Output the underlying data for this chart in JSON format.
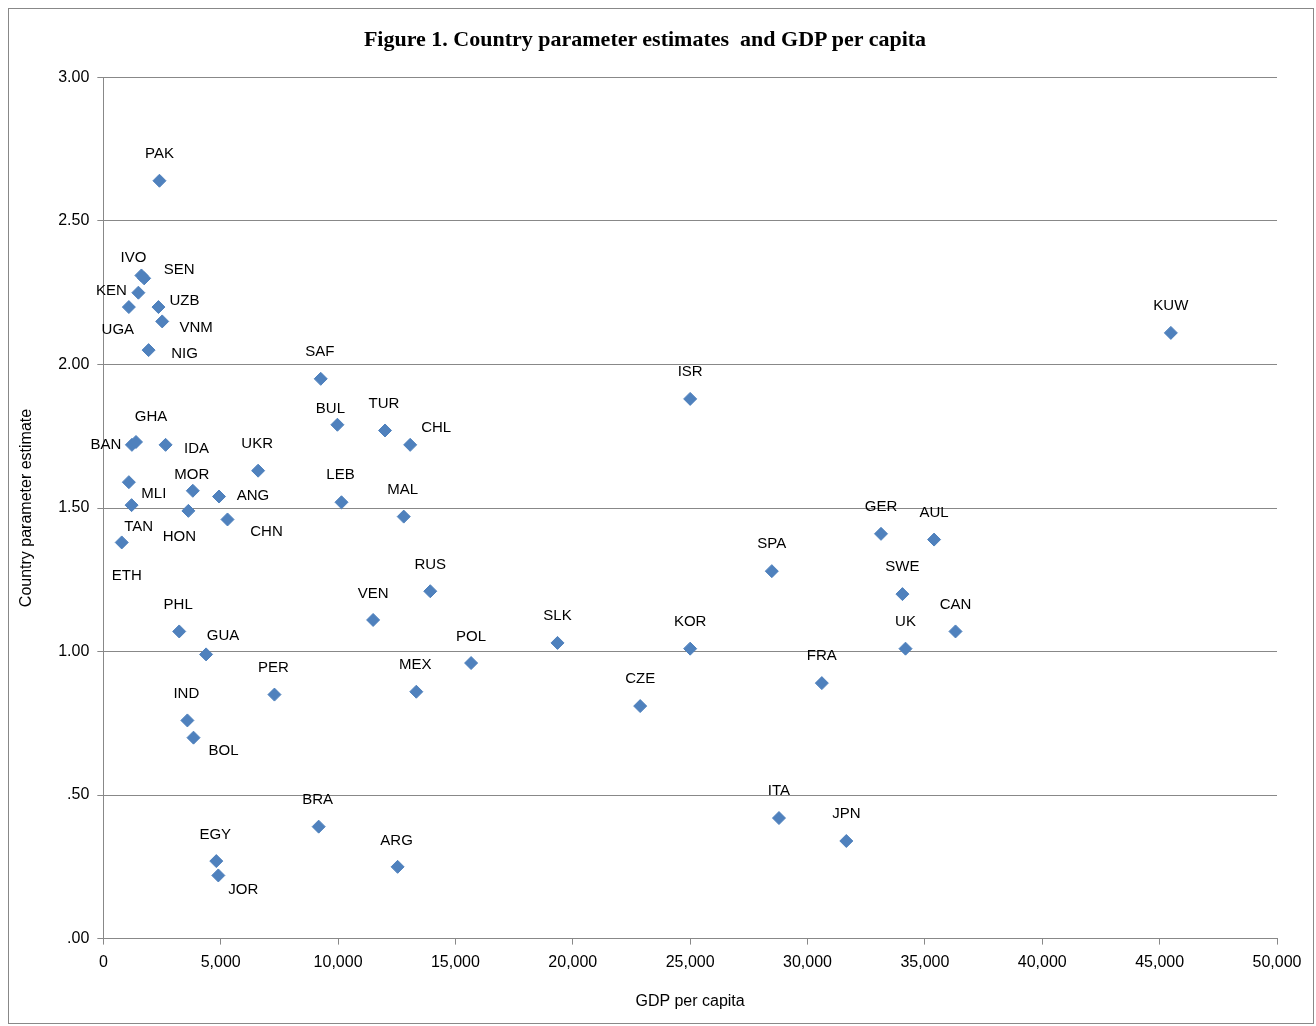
{
  "chart_data": {
    "type": "scatter",
    "title": "Figure 1. Country parameter estimates  and GDP per capita",
    "xlabel": "GDP per capita",
    "ylabel": "Country parameter estimate",
    "x": [
      2391,
      1622,
      1739,
      1493,
      1087,
      2348,
      2507,
      1928,
      9261,
      9971,
      1217,
      1391,
      2652,
      6594,
      1087,
      1203,
      783,
      3812,
      4928,
      3623,
      5290,
      10145,
      3232,
      4377,
      7290,
      3580,
      3841,
      11493,
      4812,
      4899,
      9174,
      12536,
      12000,
      13072,
      12797,
      13928,
      13333,
      15667,
      19348,
      22870,
      25000,
      25000,
      28478,
      30609,
      28783,
      31652,
      33130,
      35391,
      34043,
      34174,
      36304,
      45478
    ],
    "values": [
      2.64,
      2.31,
      2.3,
      2.25,
      2.2,
      2.2,
      2.15,
      2.05,
      1.95,
      1.79,
      1.72,
      1.73,
      1.72,
      1.63,
      1.59,
      1.51,
      1.38,
      1.56,
      1.54,
      1.49,
      1.46,
      1.52,
      1.07,
      0.99,
      0.85,
      0.76,
      0.7,
      1.11,
      0.27,
      0.22,
      0.39,
      0.25,
      1.77,
      1.72,
      1.47,
      1.21,
      0.86,
      0.96,
      1.03,
      0.81,
      1.01,
      1.88,
      1.28,
      0.89,
      0.42,
      0.34,
      1.41,
      1.39,
      1.2,
      1.01,
      1.07,
      2.11
    ],
    "color": "#4f81bd",
    "marker": "diamond",
    "grid": "y",
    "legend": false,
    "xlim": [
      0,
      50000
    ],
    "xticks": [
      0,
      {
        "value": 5000,
        "label": "5,000"
      },
      {
        "value": 10000,
        "label": "10,000"
      },
      {
        "value": 15000,
        "label": "15,000"
      },
      {
        "value": 20000,
        "label": "20,000"
      },
      {
        "value": 25000,
        "label": "25,000"
      },
      {
        "value": 30000,
        "label": "30,000"
      },
      {
        "value": 35000,
        "label": "35,000"
      },
      {
        "value": 40000,
        "label": "40,000"
      },
      {
        "value": 45000,
        "label": "45,000"
      },
      {
        "value": 50000,
        "label": "50,000"
      }
    ],
    "ylim": [
      0,
      3
    ],
    "yticks": [
      {
        "value": 0,
        "label": ".00"
      },
      {
        "value": 0.5,
        "label": ".50"
      },
      {
        "value": 1,
        "label": "1.00"
      },
      {
        "value": 1.5,
        "label": "1.50"
      },
      {
        "value": 2,
        "label": "2.00"
      },
      {
        "value": 2.5,
        "label": "2.50"
      },
      {
        "value": 3,
        "label": "3.00"
      }
    ],
    "annotations": [
      {
        "text": "PAK",
        "x": 2391,
        "y": 2.64
      },
      {
        "text": "IVO",
        "x": 1622,
        "y": 2.31
      },
      {
        "text": "SEN",
        "x": 1739,
        "y": 2.3
      },
      {
        "text": "KEN",
        "x": 1493,
        "y": 2.25
      },
      {
        "text": "UGA",
        "x": 1087,
        "y": 2.2
      },
      {
        "text": "UZB",
        "x": 2348,
        "y": 2.2
      },
      {
        "text": "VNM",
        "x": 2507,
        "y": 2.15
      },
      {
        "text": "NIG",
        "x": 1928,
        "y": 2.05
      },
      {
        "text": "SAF",
        "x": 9261,
        "y": 1.95
      },
      {
        "text": "BUL",
        "x": 9971,
        "y": 1.79
      },
      {
        "text": "BAN",
        "x": 1217,
        "y": 1.72
      },
      {
        "text": "GHA",
        "x": 1391,
        "y": 1.73
      },
      {
        "text": "IDA",
        "x": 2652,
        "y": 1.72
      },
      {
        "text": "UKR",
        "x": 6594,
        "y": 1.63
      },
      {
        "text": "MLI",
        "x": 1087,
        "y": 1.59
      },
      {
        "text": "TAN",
        "x": 1203,
        "y": 1.51
      },
      {
        "text": "ETH",
        "x": 783,
        "y": 1.38
      },
      {
        "text": "MOR",
        "x": 3812,
        "y": 1.56
      },
      {
        "text": "ANG",
        "x": 4928,
        "y": 1.54
      },
      {
        "text": "HON",
        "x": 3623,
        "y": 1.49
      },
      {
        "text": "CHN",
        "x": 5290,
        "y": 1.46
      },
      {
        "text": "LEB",
        "x": 10145,
        "y": 1.52
      },
      {
        "text": "PHL",
        "x": 3232,
        "y": 1.07
      },
      {
        "text": "GUA",
        "x": 4377,
        "y": 0.99
      },
      {
        "text": "PER",
        "x": 7290,
        "y": 0.85
      },
      {
        "text": "IND",
        "x": 3580,
        "y": 0.76
      },
      {
        "text": "BOL",
        "x": 3841,
        "y": 0.7
      },
      {
        "text": "VEN",
        "x": 11493,
        "y": 1.11
      },
      {
        "text": "EGY",
        "x": 4812,
        "y": 0.27
      },
      {
        "text": "JOR",
        "x": 4899,
        "y": 0.22
      },
      {
        "text": "BRA",
        "x": 9174,
        "y": 0.39
      },
      {
        "text": "ARG",
        "x": 12536,
        "y": 0.25
      },
      {
        "text": "TUR",
        "x": 12000,
        "y": 1.77
      },
      {
        "text": "CHL",
        "x": 13072,
        "y": 1.72
      },
      {
        "text": "MAL",
        "x": 12797,
        "y": 1.47
      },
      {
        "text": "RUS",
        "x": 13928,
        "y": 1.21
      },
      {
        "text": "MEX",
        "x": 13333,
        "y": 0.86
      },
      {
        "text": "POL",
        "x": 15667,
        "y": 0.96
      },
      {
        "text": "SLK",
        "x": 19348,
        "y": 1.03
      },
      {
        "text": "CZE",
        "x": 22870,
        "y": 0.81
      },
      {
        "text": "KOR",
        "x": 25000,
        "y": 1.01
      },
      {
        "text": "ISR",
        "x": 25000,
        "y": 1.88
      },
      {
        "text": "SPA",
        "x": 28478,
        "y": 1.28
      },
      {
        "text": "FRA",
        "x": 30609,
        "y": 0.89
      },
      {
        "text": "ITA",
        "x": 28783,
        "y": 0.42
      },
      {
        "text": "JPN",
        "x": 31652,
        "y": 0.34
      },
      {
        "text": "GER",
        "x": 33130,
        "y": 1.41
      },
      {
        "text": "AUL",
        "x": 35391,
        "y": 1.39
      },
      {
        "text": "SWE",
        "x": 34043,
        "y": 1.2
      },
      {
        "text": "UK",
        "x": 34174,
        "y": 1.01
      },
      {
        "text": "CAN",
        "x": 36304,
        "y": 1.07
      },
      {
        "text": "KUW",
        "x": 45478,
        "y": 2.11
      }
    ]
  }
}
